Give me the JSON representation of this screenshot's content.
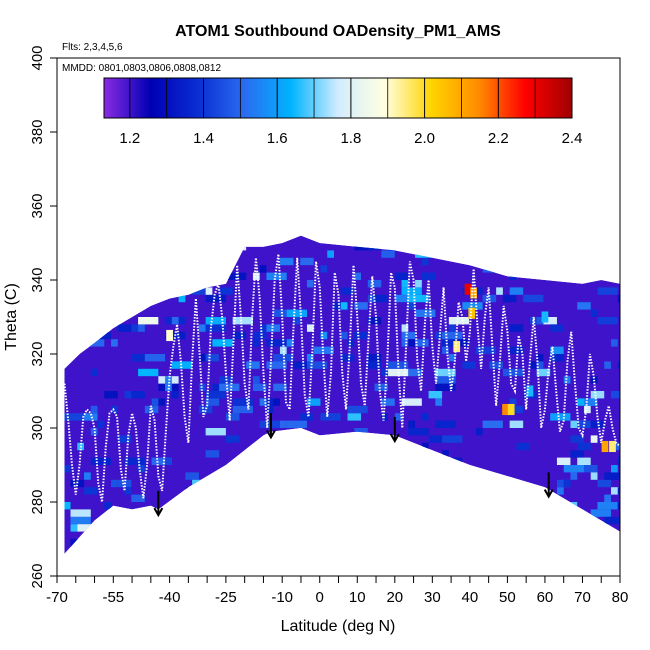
{
  "chart_data": {
    "type": "heatmap",
    "title": "ATOM1 Southbound OADensity_PM1_AMS",
    "xlabel": "Latitude (deg N)",
    "ylabel": "Theta (C)",
    "xlim": [
      -70,
      80
    ],
    "ylim": [
      260,
      400
    ],
    "x_tick_labels": [
      "-70",
      "-55",
      "-40",
      "-25",
      "-10",
      "0",
      "10",
      "20",
      "30",
      "40",
      "50",
      "60",
      "70",
      "80"
    ],
    "x_tick_values": [
      -70,
      -55,
      -40,
      -25,
      -10,
      0,
      10,
      20,
      30,
      40,
      50,
      60,
      70,
      80
    ],
    "x_minor_tick_values": [
      -65,
      -60,
      -50,
      -45,
      -35,
      -30,
      -20,
      -15,
      -5,
      5,
      15,
      25,
      35,
      45,
      55,
      65,
      75
    ],
    "y_tick_labels": [
      "260",
      "280",
      "300",
      "320",
      "340",
      "360",
      "380",
      "400"
    ],
    "y_tick_values": [
      260,
      280,
      300,
      320,
      340,
      360,
      380,
      400
    ],
    "annotations": {
      "flights": "Flts: 2,3,4,5,6",
      "dates": "MMDD: 0801,0803,0806,0808,0812"
    },
    "colorbar": {
      "range": [
        1.13,
        2.4
      ],
      "tick_labels": [
        "1.2",
        "1.4",
        "1.6",
        "1.8",
        "2.0",
        "2.2",
        "2.4"
      ],
      "tick_values": [
        1.2,
        1.4,
        1.6,
        1.8,
        2.0,
        2.2,
        2.4
      ],
      "colors": [
        "#8a2be2",
        "#0000b4",
        "#0a2dd2",
        "#2a6cf0",
        "#00b4ff",
        "#d2ecff",
        "#ffffe0",
        "#ffd400",
        "#ff8c00",
        "#ff0000",
        "#a00000"
      ]
    },
    "tropopause_theta_profile": {
      "lat": [
        -68,
        -60,
        -55,
        -50,
        -45,
        -43,
        -35,
        -25,
        -15,
        -13,
        -5,
        0,
        10,
        20,
        30,
        40,
        50,
        60,
        70,
        80
      ],
      "theta": [
        266,
        275,
        279,
        278,
        279,
        278,
        284,
        290,
        298,
        299,
        300,
        298,
        299,
        298,
        294,
        290,
        287,
        284,
        278,
        272
      ]
    },
    "upper_edge_profile": {
      "lat": [
        -68,
        -64,
        -60,
        -55,
        -50,
        -45,
        -40,
        -35,
        -30,
        -25,
        -20,
        -15,
        -10,
        -5,
        0,
        10,
        20,
        30,
        40,
        50,
        60,
        70,
        75,
        80
      ],
      "theta": [
        316,
        320,
        323,
        327,
        330,
        333,
        335,
        336,
        338,
        339,
        349,
        349,
        350,
        352,
        350,
        349,
        348,
        346,
        344,
        341,
        340,
        339,
        340,
        339
      ]
    },
    "high_value_patches": [
      {
        "lat": 39.5,
        "theta": 337.5,
        "value": 2.3
      },
      {
        "lat": 41,
        "theta": 336.5,
        "value": 2.1
      },
      {
        "lat": 40.5,
        "theta": 331,
        "value": 2.05
      },
      {
        "lat": 36.5,
        "theta": 322,
        "value": 1.95
      },
      {
        "lat": 49.5,
        "theta": 305,
        "value": 2.15
      },
      {
        "lat": 51,
        "theta": 305,
        "value": 2.0
      },
      {
        "lat": 76,
        "theta": 295,
        "value": 2.1
      },
      {
        "lat": 78,
        "theta": 295,
        "value": 1.95
      },
      {
        "lat": -40,
        "theta": 325,
        "value": 1.9
      },
      {
        "lat": 56,
        "theta": 310,
        "value": 1.65
      },
      {
        "lat": 60,
        "theta": 330,
        "value": 1.65
      }
    ],
    "flight_track_profiles": [
      {
        "lat": [
          -68,
          -67,
          -66,
          -65,
          -64,
          -63,
          -62,
          -61,
          -60,
          -59,
          -58,
          -57,
          -56,
          -55,
          -54,
          -53,
          -52,
          -51,
          -50,
          -49,
          -48,
          -47,
          -46,
          -45,
          -44,
          -43,
          -42,
          -41,
          -40,
          -39,
          -38,
          -37,
          -36,
          -35,
          -34,
          -33,
          -32,
          -31,
          -30,
          -29,
          -28,
          -27,
          -26,
          -25,
          -24,
          -23,
          -22,
          -21,
          -20,
          -19,
          -18,
          -17,
          -16,
          -15,
          -14,
          -13,
          -12,
          -11,
          -10,
          -9,
          -8,
          -7,
          -6,
          -5,
          -4,
          -3,
          -2,
          -1,
          0,
          1,
          2,
          3,
          4,
          5,
          6,
          7,
          8,
          9,
          10,
          11,
          12,
          13,
          14,
          15,
          16,
          17,
          18,
          19,
          20,
          21,
          22,
          23,
          24,
          25,
          26,
          27,
          28,
          29,
          30,
          31,
          32,
          33,
          34,
          35,
          36,
          37,
          38,
          39,
          40,
          41,
          42,
          43,
          44,
          45,
          46,
          47,
          48,
          49,
          50,
          51,
          52,
          53,
          54,
          55,
          56,
          57,
          58,
          59,
          60,
          61,
          62,
          63,
          64,
          65,
          66,
          67,
          68,
          69,
          70,
          71,
          72,
          73,
          74,
          75,
          76,
          77,
          78,
          79,
          80
        ],
        "theta": [
          312,
          302,
          290,
          282,
          290,
          303,
          305,
          304,
          300,
          285,
          280,
          295,
          304,
          305,
          303,
          289,
          283,
          298,
          304,
          300,
          289,
          281,
          290,
          306,
          302,
          287,
          283,
          299,
          314,
          322,
          328,
          318,
          303,
          296,
          318,
          335,
          320,
          303,
          306,
          327,
          336,
          339,
          330,
          315,
          302,
          323,
          344,
          330,
          312,
          305,
          330,
          346,
          335,
          315,
          300,
          318,
          340,
          347,
          330,
          307,
          305,
          327,
          346,
          330,
          309,
          303,
          320,
          345,
          338,
          318,
          303,
          315,
          342,
          336,
          315,
          305,
          322,
          344,
          330,
          312,
          306,
          324,
          341,
          330,
          310,
          302,
          318,
          342,
          338,
          315,
          300,
          322,
          345,
          340,
          318,
          310,
          328,
          340,
          322,
          312,
          325,
          338,
          320,
          310,
          318,
          334,
          330,
          318,
          326,
          343,
          328,
          316,
          330,
          338,
          322,
          306,
          318,
          333,
          326,
          312,
          310,
          325,
          320,
          305,
          318,
          330,
          318,
          300,
          305,
          316,
          322,
          310,
          299,
          302,
          318,
          326,
          312,
          300,
          298,
          305,
          320,
          314,
          303,
          296,
          302,
          306,
          300,
          296,
          295
        ]
      }
    ],
    "arrows": [
      {
        "lat": -43,
        "theta": 283
      },
      {
        "lat": -13,
        "theta": 304
      },
      {
        "lat": 20,
        "theta": 303
      },
      {
        "lat": 61,
        "theta": 288
      }
    ]
  }
}
